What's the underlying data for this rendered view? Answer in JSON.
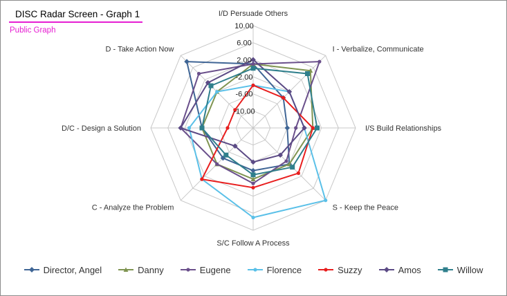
{
  "header": {
    "title": "DISC Radar Screen - Graph 1",
    "subtitle": "Public Graph"
  },
  "chart_data": {
    "type": "radar",
    "axes": [
      "I/D Persuade Others",
      "I - Verbalize, Communicate",
      "I/S Build Relationships",
      "S - Keep the Peace",
      "S/C Follow A Process",
      "C - Analyze the Problem",
      "D/C - Design a Solution",
      "D - Take Action Now"
    ],
    "ticks": [
      "10.00",
      "6.00",
      "2.00",
      "-2.00",
      "-6.00",
      "-10.00"
    ],
    "rlim": [
      -14,
      10
    ],
    "grid_levels": [
      -10,
      -6,
      -2,
      2,
      6,
      10
    ],
    "legend_position": "bottom",
    "series": [
      {
        "name": "Director, Angel",
        "color": "#3f6595",
        "marker": "diamond",
        "values": [
          1,
          -4,
          -6,
          -2,
          -4,
          -4,
          -2,
          8
        ]
      },
      {
        "name": "Danny",
        "color": "#7f9451",
        "marker": "triangle",
        "values": [
          1,
          5,
          0,
          -2,
          -2,
          -2,
          -2,
          -2
        ]
      },
      {
        "name": "Eugene",
        "color": "#6a4f8b",
        "marker": "x",
        "values": [
          1,
          8,
          -4,
          -3,
          -1,
          -2,
          3,
          4
        ]
      },
      {
        "name": "Florence",
        "color": "#5ac0e8",
        "marker": "circle",
        "values": [
          -4,
          -2,
          -2,
          10,
          7,
          3,
          1,
          -2
        ]
      },
      {
        "name": "Suzzy",
        "color": "#e81e1e",
        "marker": "circle",
        "values": [
          -4,
          -4,
          0,
          1,
          0,
          3,
          -8,
          -8
        ]
      },
      {
        "name": "Amos",
        "color": "#5b4a85",
        "marker": "diamond",
        "values": [
          2,
          -2,
          -2,
          -5,
          -6,
          -8,
          3,
          1
        ]
      },
      {
        "name": "Willow",
        "color": "#2f7f8c",
        "marker": "square",
        "values": [
          0,
          4,
          1,
          -1,
          -3,
          -5,
          -2,
          0
        ]
      }
    ]
  }
}
